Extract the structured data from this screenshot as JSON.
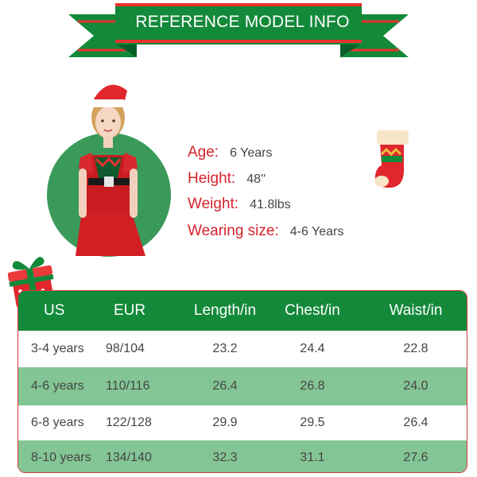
{
  "banner": {
    "title": "REFERENCE MODEL INFO"
  },
  "model": {
    "age_label": "Age:",
    "age_value": "6 Years",
    "height_label": "Height:",
    "height_value": "48''",
    "weight_label": "Weight:",
    "weight_value": "41.8lbs",
    "size_label": "Wearing size:",
    "size_value": "4-6 Years"
  },
  "table": {
    "headers": [
      "US",
      "EUR",
      "Length/in",
      "Chest/in",
      "Waist/in"
    ],
    "rows": [
      [
        "3-4 years",
        "98/104",
        "23.2",
        "24.4",
        "22.8"
      ],
      [
        "4-6 years",
        "110/116",
        "26.4",
        "26.8",
        "24.0"
      ],
      [
        "6-8 years",
        "122/128",
        "29.9",
        "29.5",
        "26.4"
      ],
      [
        "8-10 years",
        "134/140",
        "32.3",
        "31.1",
        "27.6"
      ]
    ]
  },
  "colors": {
    "green": "#13893a",
    "light_green": "#83c594",
    "red": "#d6232b"
  },
  "icons": [
    "christmas-stocking-icon",
    "gift-box-icon"
  ]
}
